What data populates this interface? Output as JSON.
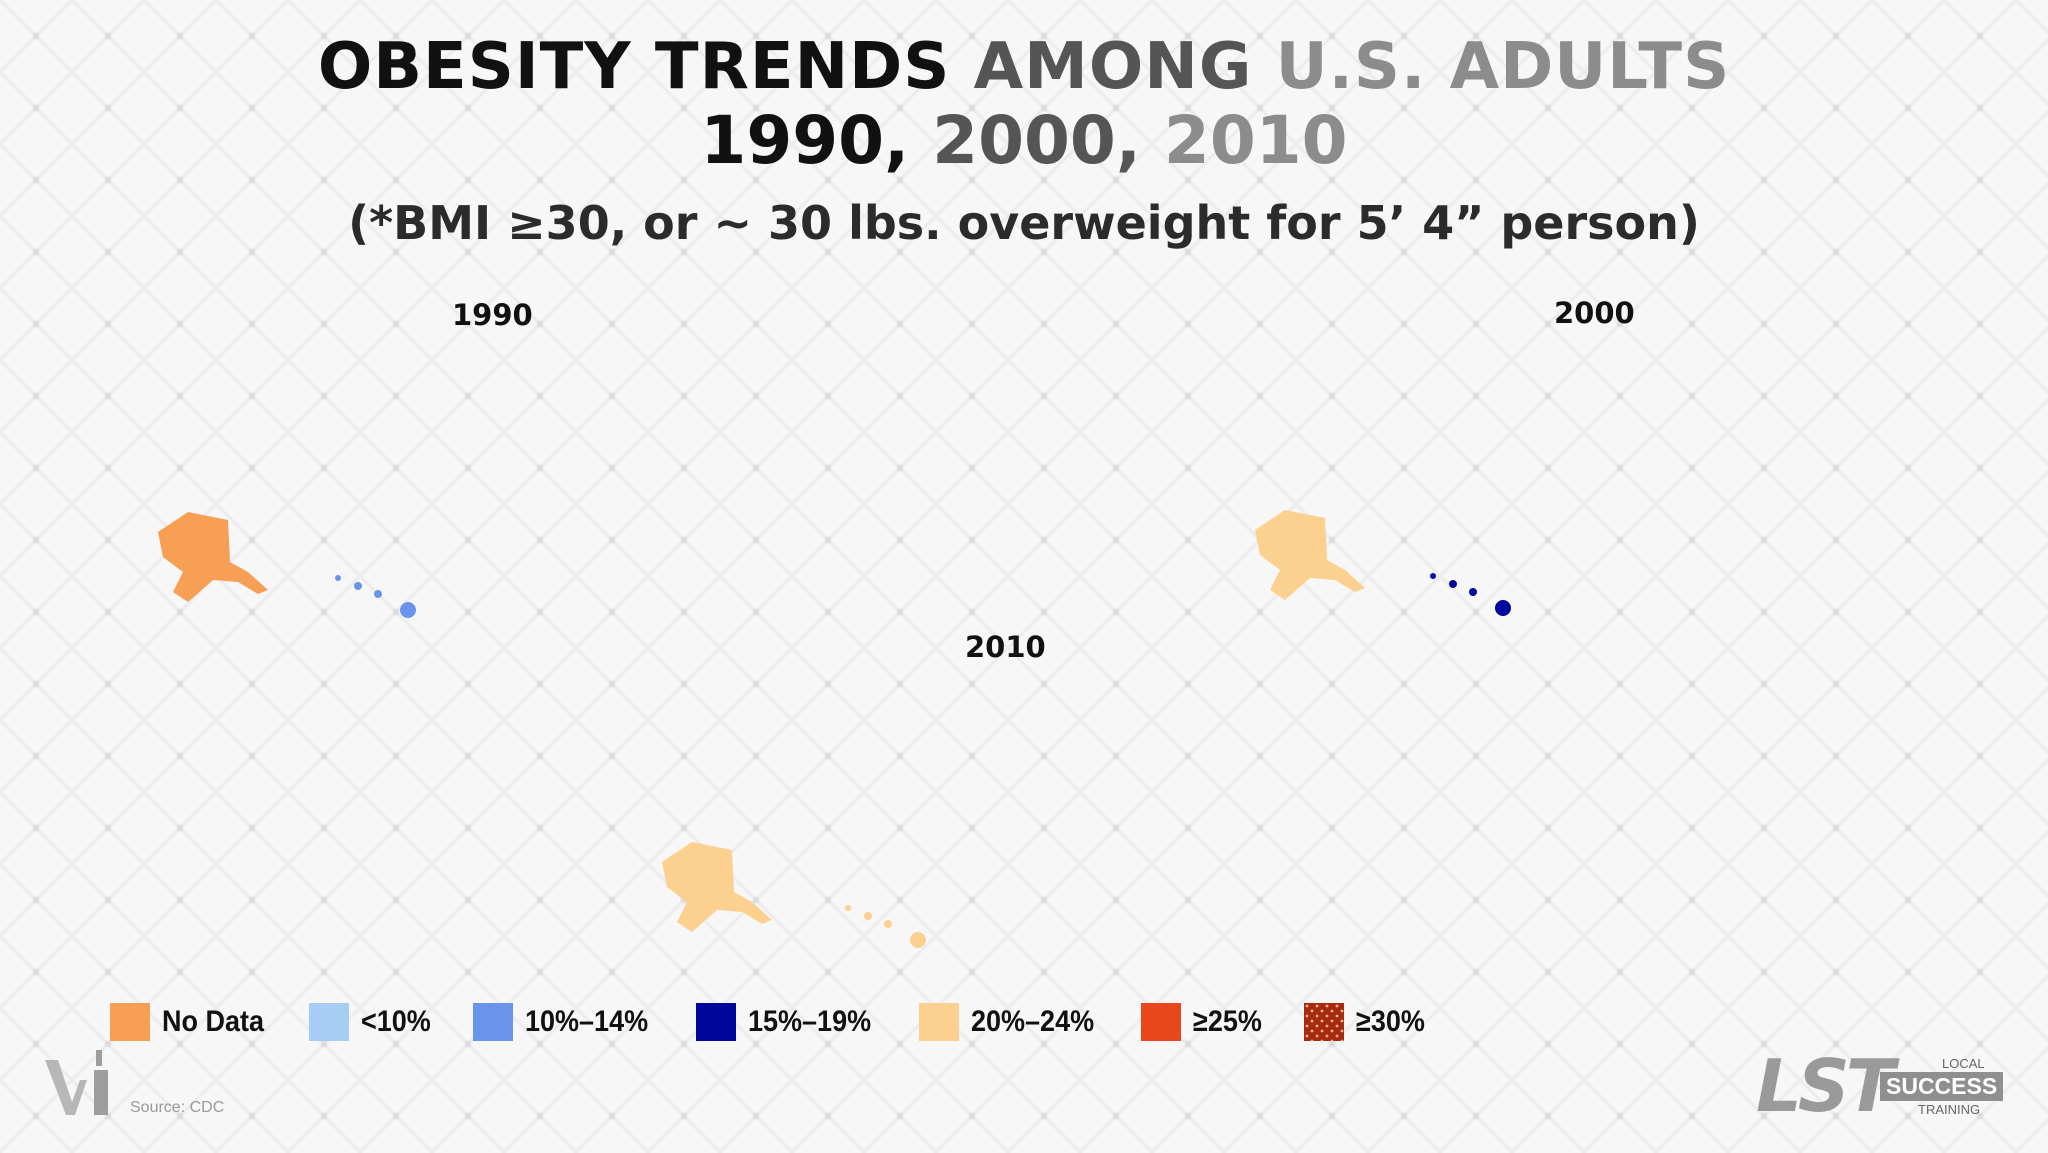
{
  "title": {
    "line1_part1": "OBESITY TRENDS",
    "line1_part2": "AMONG",
    "line1_part3": "U.S. ADULTS",
    "line2_part1": "1990,",
    "line2_part2": "2000,",
    "line2_part3": "2010"
  },
  "subtitle": "(*BMI ≥30, or ~ 30 lbs. overweight for 5’ 4” person)",
  "maps": [
    {
      "year": "1990"
    },
    {
      "year": "2000"
    },
    {
      "year": "2010"
    }
  ],
  "legend": [
    {
      "label": "No Data",
      "color": "#f7a055"
    },
    {
      "label": "<10%",
      "color": "#a8cdf5"
    },
    {
      "label": "10%–14%",
      "color": "#6a93ea"
    },
    {
      "label": "15%–19%",
      "color": "#00079a"
    },
    {
      "label": "20%–24%",
      "color": "#fcd190"
    },
    {
      "label": "≥25%",
      "color": "#e8471b"
    },
    {
      "label": "≥30%",
      "color": "#a62a10"
    }
  ],
  "source": "Source: CDC",
  "logo": {
    "letters": "LST",
    "local": "LOCAL",
    "success": "SUCCESS",
    "training": "TRAINING"
  }
}
